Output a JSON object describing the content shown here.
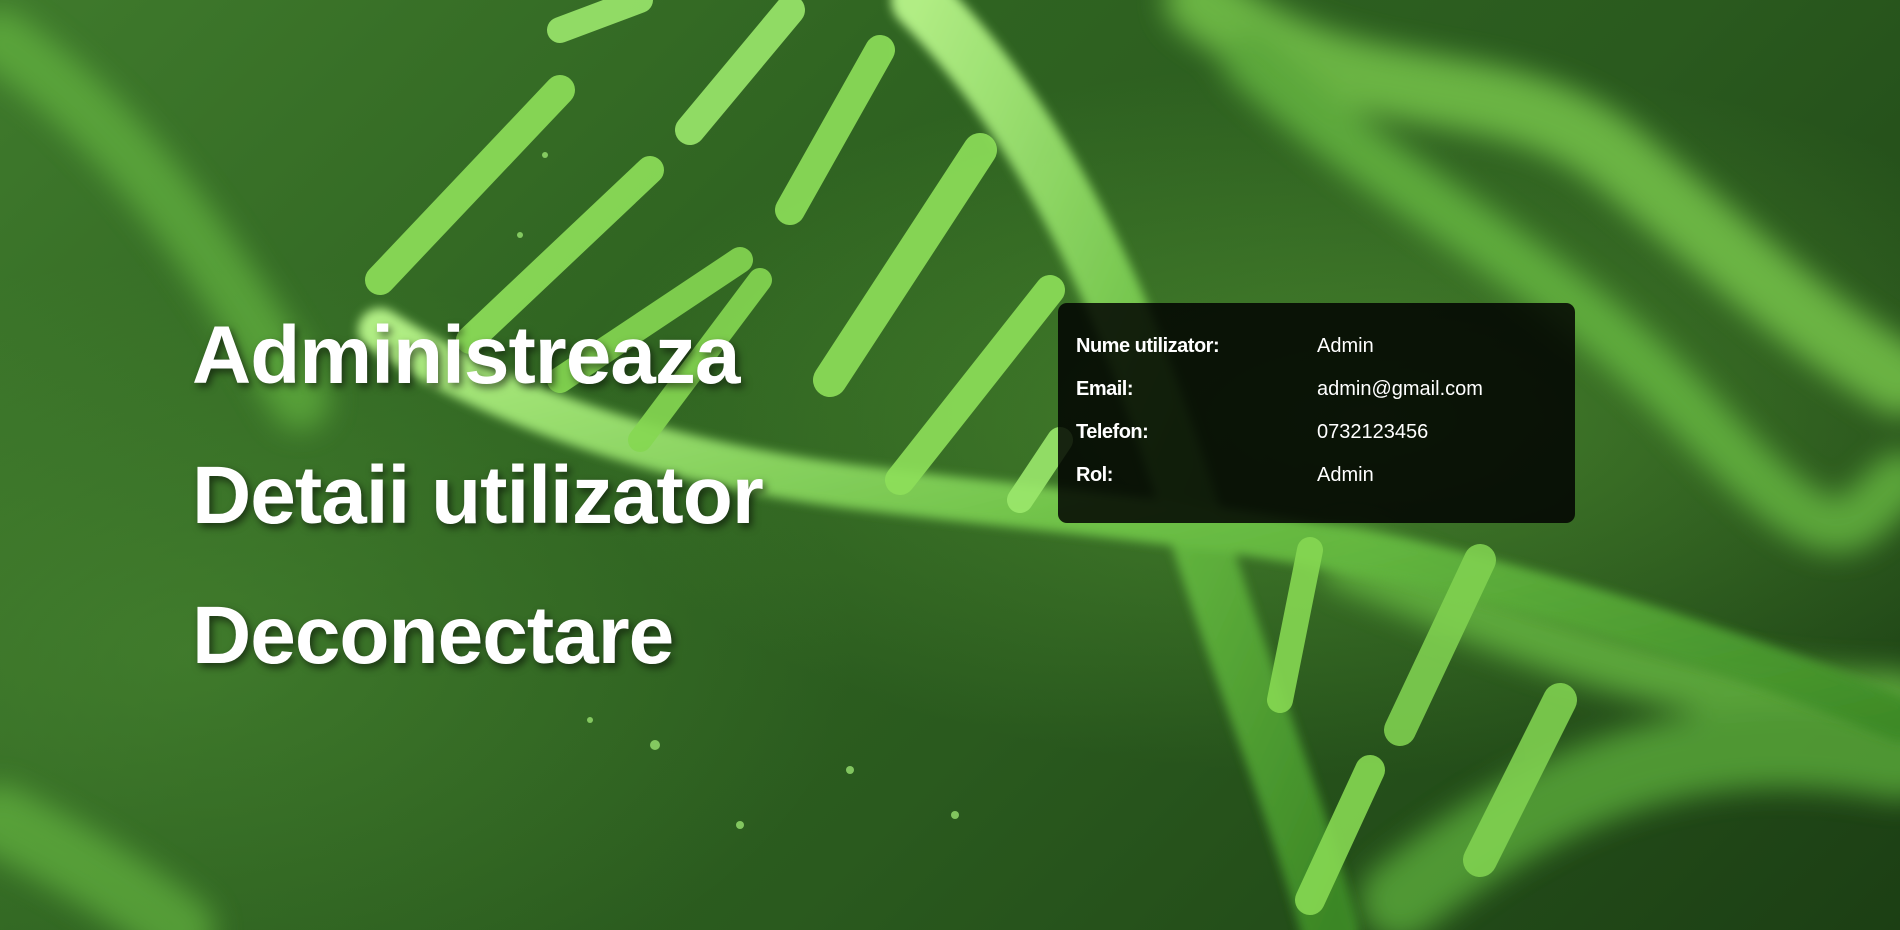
{
  "nav": {
    "links": [
      {
        "label": "Administreaza"
      },
      {
        "label": "Detaii utilizator"
      },
      {
        "label": "Deconectare"
      }
    ]
  },
  "user_details": {
    "rows": [
      {
        "label": "Nume utilizator:",
        "value": "Admin"
      },
      {
        "label": "Email:",
        "value": "admin@gmail.com"
      },
      {
        "label": "Telefon:",
        "value": "0732123456"
      },
      {
        "label": "Rol:",
        "value": "Admin"
      }
    ]
  },
  "background": {
    "image": "dna-helix-illustration",
    "colors": {
      "base": "#2f6321",
      "highlight": "#8ee05a",
      "card": "#000000"
    }
  }
}
